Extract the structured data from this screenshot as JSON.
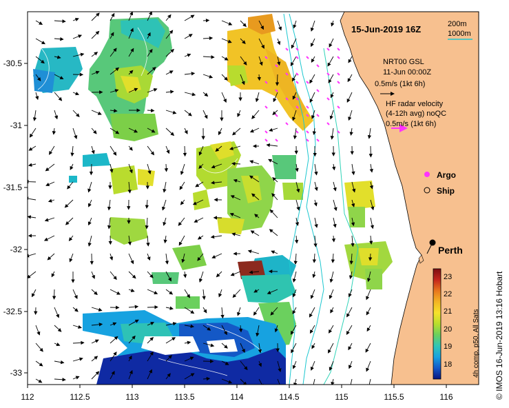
{
  "title": "15-Jun-2019 16Z",
  "depth_legend": {
    "contour_200": "200m",
    "contour_1000": "1000m",
    "color_200": "#1cc7d0",
    "color_1000": "#2fd3b8"
  },
  "model_label": "NRT00 GSL",
  "model_date": "11-Jun 00:00Z",
  "model_scale": "0.5m/s (1kt 6h)",
  "radar_title": "HF radar velocity",
  "radar_avg": "(4-12h avg) noQC",
  "radar_scale": "0.5m/s (1kt 6h)",
  "argo_label": "Argo",
  "ship_label": "Ship",
  "city_label": "Perth",
  "credit": "© IMOS 16-Jun-2019 13:16 Hobart",
  "colorbar": {
    "label": "4h comp, p50, All Sats",
    "ticks": [
      "23",
      "22",
      "21",
      "20",
      "19",
      "18"
    ],
    "min": 17.4,
    "max": 23.6,
    "colors": [
      "#0a1580",
      "#1459c8",
      "#17a2e0",
      "#31c6b6",
      "#6bd05e",
      "#b9de2d",
      "#f6e22a",
      "#f3b524",
      "#e8761d",
      "#c4261c",
      "#7d0e12"
    ]
  },
  "axes": {
    "x_ticks": [
      "112",
      "112.5",
      "113",
      "113.5",
      "114",
      "114.5",
      "115",
      "115.5",
      "116"
    ],
    "y_ticks": [
      "-30.5",
      "-31",
      "-31.5",
      "-32",
      "-32.5",
      "-33"
    ],
    "lon_range": [
      112,
      116.3
    ],
    "lat_range": [
      -33.1,
      -30.1
    ]
  },
  "colors": {
    "land": "#f7c08f",
    "frame": "#000000",
    "magenta": "#ff33ff"
  }
}
